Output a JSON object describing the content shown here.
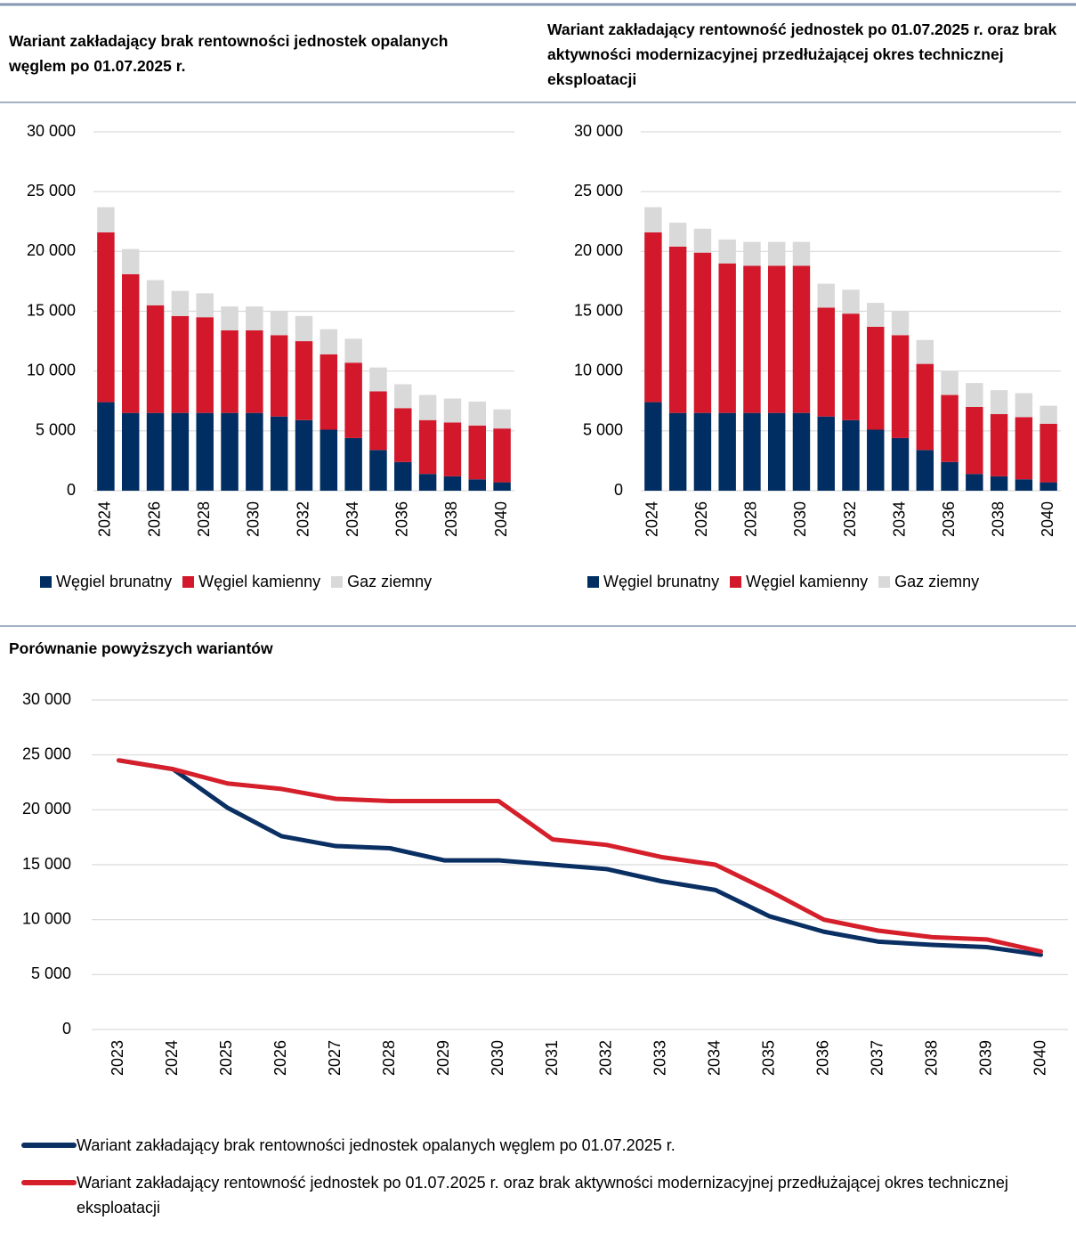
{
  "chart_data": [
    {
      "type": "bar",
      "stacked": true,
      "title": "Wariant zakładający brak rentowności jednostek opalanych węglem po 01.07.2025 r.",
      "categories": [
        "2024",
        null,
        "2026",
        null,
        "2028",
        null,
        "2030",
        null,
        "2032",
        null,
        "2034",
        null,
        "2036",
        null,
        "2038",
        null,
        "2040"
      ],
      "series": [
        {
          "name": "Węgiel brunatny",
          "color": "#002d62",
          "values": [
            7400,
            6500,
            6500,
            6500,
            6500,
            6500,
            6500,
            6200,
            5900,
            5100,
            4400,
            3400,
            2400,
            1400,
            1200,
            950,
            700
          ]
        },
        {
          "name": "Węgiel kamienny",
          "color": "#d3182b",
          "values": [
            14200,
            11600,
            9000,
            8100,
            8000,
            6900,
            6900,
            6800,
            6600,
            6300,
            6300,
            4900,
            4500,
            4500,
            4500,
            4500,
            4500
          ]
        },
        {
          "name": "Gaz ziemny",
          "color": "#d9d9d9",
          "values": [
            2100,
            2100,
            2100,
            2100,
            2000,
            2000,
            2000,
            2000,
            2100,
            2100,
            2000,
            2000,
            2000,
            2100,
            2000,
            2000,
            1600
          ]
        }
      ],
      "ylim": [
        0,
        30000
      ],
      "yticks": [
        0,
        {
          "value": 5000,
          "label": "5 000"
        },
        {
          "value": 10000,
          "label": "10 000"
        },
        {
          "value": 15000,
          "label": "15 000"
        },
        {
          "value": 20000,
          "label": "20 000"
        },
        {
          "value": 25000,
          "label": "25 000"
        },
        {
          "value": 30000,
          "label": "30 000"
        }
      ],
      "grid": true,
      "legend": "bottom"
    },
    {
      "type": "bar",
      "stacked": true,
      "title": "Wariant zakładający rentowność jednostek po 01.07.2025 r. oraz brak aktywności modernizacyjnej przedłużającej okres technicznej eksploatacji",
      "categories": [
        "2024",
        null,
        "2026",
        null,
        "2028",
        null,
        "2030",
        null,
        "2032",
        null,
        "2034",
        null,
        "2036",
        null,
        "2038",
        null,
        "2040"
      ],
      "series": [
        {
          "name": "Węgiel brunatny",
          "color": "#002d62",
          "values": [
            7400,
            6500,
            6500,
            6500,
            6500,
            6500,
            6500,
            6200,
            5900,
            5100,
            4400,
            3400,
            2400,
            1400,
            1200,
            950,
            700
          ]
        },
        {
          "name": "Węgiel kamienny",
          "color": "#d3182b",
          "values": [
            14200,
            13900,
            13400,
            12500,
            12300,
            12300,
            12300,
            9100,
            8900,
            8600,
            8600,
            7200,
            5600,
            5600,
            5200,
            5200,
            4900
          ]
        },
        {
          "name": "Gaz ziemny",
          "color": "#d9d9d9",
          "values": [
            2100,
            2000,
            2000,
            2000,
            2000,
            2000,
            2000,
            2000,
            2000,
            2000,
            2000,
            2000,
            2000,
            2000,
            2000,
            2000,
            1500
          ]
        }
      ],
      "ylim": [
        0,
        30000
      ],
      "yticks": [
        0,
        {
          "value": 5000,
          "label": "5 000"
        },
        {
          "value": 10000,
          "label": "10 000"
        },
        {
          "value": 15000,
          "label": "15 000"
        },
        {
          "value": 20000,
          "label": "20 000"
        },
        {
          "value": 25000,
          "label": "25 000"
        },
        {
          "value": 30000,
          "label": "30 000"
        }
      ],
      "grid": true,
      "legend": "bottom"
    },
    {
      "type": "line",
      "title": "Porównanie powyższych wariantów",
      "categories": [
        "2023",
        "2024",
        "2025",
        "2026",
        "2027",
        "2028",
        "2029",
        "2030",
        "2031",
        "2032",
        "2033",
        "2034",
        "2035",
        "2036",
        "2037",
        "2038",
        "2039",
        "2040"
      ],
      "series": [
        {
          "name": "Wariant zakładający brak rentowności jednostek opalanych węglem po 01.07.2025 r.",
          "color": "#0a2f63",
          "values": [
            24500,
            23700,
            20200,
            17600,
            16700,
            16500,
            15400,
            15400,
            15000,
            14600,
            13500,
            12700,
            10300,
            8900,
            8000,
            7700,
            7500,
            6800
          ]
        },
        {
          "name": "Wariant zakładający rentowność jednostek po 01.07.2025 r. oraz brak aktywności modernizacyjnej przedłużającej okres technicznej eksploatacji",
          "color": "#d51f2b",
          "values": [
            24500,
            23700,
            22400,
            21900,
            21000,
            20800,
            20800,
            20800,
            17300,
            16800,
            15700,
            15000,
            12600,
            10000,
            9000,
            8400,
            8200,
            7100
          ]
        }
      ],
      "ylim": [
        0,
        30000
      ],
      "yticks": [
        0,
        {
          "value": 5000,
          "label": "5 000"
        },
        {
          "value": 10000,
          "label": "10 000"
        },
        {
          "value": 15000,
          "label": "15 000"
        },
        {
          "value": 20000,
          "label": "20 000"
        },
        {
          "value": 25000,
          "label": "25 000"
        },
        {
          "value": 30000,
          "label": "30 000"
        }
      ],
      "grid": true,
      "legend": "bottom"
    }
  ]
}
